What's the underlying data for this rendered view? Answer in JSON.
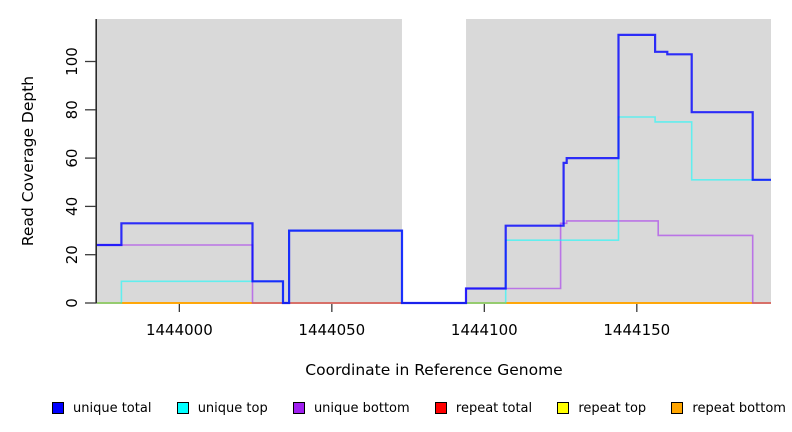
{
  "chart_data": {
    "type": "line",
    "subtype": "step-coverage",
    "title": "",
    "xlabel": "Coordinate in Reference Genome",
    "ylabel": "Read Coverage Depth",
    "xlim": [
      1443973,
      1444194
    ],
    "ylim": [
      0,
      117
    ],
    "grid": false,
    "x_ticks": [
      1444000,
      1444050,
      1444100,
      1444150
    ],
    "x_tick_labels": [
      "1444000",
      "1444050",
      "1444100",
      "1444150"
    ],
    "y_ticks": [
      0,
      20,
      40,
      60,
      80,
      100
    ],
    "y_tick_labels": [
      "0",
      "20",
      "40",
      "60",
      "80",
      "100"
    ],
    "background_shading": {
      "color": "#d9d9d9",
      "regions": [
        [
          1443973,
          1444073
        ],
        [
          1444094,
          1444194
        ]
      ]
    },
    "draw_order": [
      "repeat_total",
      "repeat_top",
      "repeat_bottom",
      "unique_bottom",
      "unique_top",
      "unique_total"
    ],
    "series": [
      {
        "key": "unique_total",
        "name": "unique total",
        "color": "#0000ff",
        "opacity": 0.8,
        "width": 2.2,
        "steps": [
          [
            1443973,
            24
          ],
          [
            1443981,
            33
          ],
          [
            1444024,
            9
          ],
          [
            1444034,
            0
          ],
          [
            1444036,
            30
          ],
          [
            1444073,
            0
          ],
          [
            1444094,
            6
          ],
          [
            1444107,
            32
          ],
          [
            1444126,
            58
          ],
          [
            1444127,
            60
          ],
          [
            1444144,
            111
          ],
          [
            1444156,
            104
          ],
          [
            1444160,
            103
          ],
          [
            1444168,
            79
          ],
          [
            1444188,
            51
          ]
        ]
      },
      {
        "key": "unique_top",
        "name": "unique top",
        "color": "#00ffff",
        "opacity": 0.55,
        "width": 1.6,
        "steps": [
          [
            1443973,
            0
          ],
          [
            1443981,
            9
          ],
          [
            1444034,
            0
          ],
          [
            1444036,
            30
          ],
          [
            1444073,
            0
          ],
          [
            1444107,
            26
          ],
          [
            1444144,
            77
          ],
          [
            1444156,
            75
          ],
          [
            1444168,
            51
          ]
        ]
      },
      {
        "key": "unique_bottom",
        "name": "unique bottom",
        "color": "#a020f0",
        "opacity": 0.55,
        "width": 1.6,
        "steps": [
          [
            1443973,
            24
          ],
          [
            1444024,
            0
          ],
          [
            1444094,
            6
          ],
          [
            1444125,
            33
          ],
          [
            1444127,
            34
          ],
          [
            1444157,
            28
          ],
          [
            1444188,
            0
          ]
        ]
      },
      {
        "key": "repeat_total",
        "name": "repeat total",
        "color": "#ff0000",
        "opacity": 0.9,
        "width": 1.5,
        "steps": [
          [
            1443973,
            0
          ]
        ]
      },
      {
        "key": "repeat_top",
        "name": "repeat top",
        "color": "#ffff00",
        "opacity": 0.9,
        "width": 1.5,
        "steps": [
          [
            1443973,
            0
          ]
        ]
      },
      {
        "key": "repeat_bottom",
        "name": "repeat bottom",
        "color": "#ffa500",
        "opacity": 1,
        "width": 1.8,
        "steps": [
          [
            1443973,
            0
          ]
        ]
      }
    ],
    "legend": {
      "position": "bottom",
      "entries": [
        {
          "key": "unique_total",
          "label": "unique total",
          "color": "#0000ff"
        },
        {
          "key": "unique_top",
          "label": "unique top",
          "color": "#00ffff"
        },
        {
          "key": "unique_bottom",
          "label": "unique bottom",
          "color": "#a020f0"
        },
        {
          "key": "repeat_total",
          "label": "repeat total",
          "color": "#ff0000"
        },
        {
          "key": "repeat_top",
          "label": "repeat top",
          "color": "#ffff00"
        },
        {
          "key": "repeat_bottom",
          "label": "repeat bottom",
          "color": "#ffa500"
        }
      ]
    }
  }
}
